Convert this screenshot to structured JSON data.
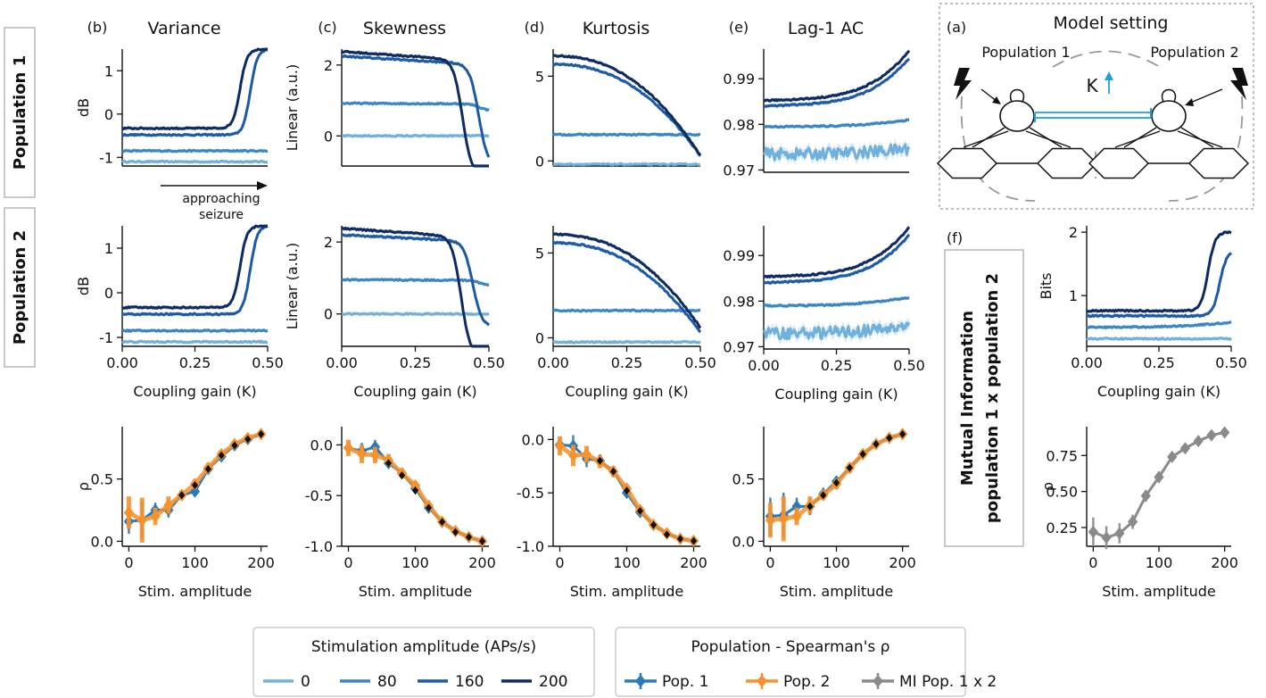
{
  "colors": {
    "stim_0": "#6fb1dc",
    "stim_80": "#3a85c4",
    "stim_160": "#1c5aa5",
    "stim_200": "#0d2b62",
    "pop1": "#2a7bb8",
    "pop2": "#f5922e",
    "mi": "#8a8a8a",
    "K_arrow": "#1aa0de"
  },
  "row_labels": [
    "Population 1",
    "Population 2"
  ],
  "mi_label": [
    "Mutual Information",
    "population 1 x population 2"
  ],
  "annotation": [
    "approaching",
    "seizure"
  ],
  "model": {
    "panel": "(a)",
    "title": "Model setting",
    "pop1": "Population 1",
    "pop2": "Population 2",
    "K": "K"
  },
  "chart_data": [
    {
      "id": "variance-pop1",
      "panel": "(b)",
      "title": "Variance",
      "type": "line",
      "ylabel": "dB",
      "xlabel": "",
      "xlim": [
        0,
        0.5
      ],
      "ylim": [
        -1.2,
        1.5
      ],
      "yticks": [
        -1,
        0,
        1
      ],
      "xticks": [],
      "series": [
        {
          "stim": 0,
          "shape": "flat",
          "level": -1.1
        },
        {
          "stim": 80,
          "shape": "flat",
          "level": -0.85
        },
        {
          "stim": 160,
          "shape": "rise",
          "level": -0.48,
          "top": 1.5,
          "k0": 0.44
        },
        {
          "stim": 200,
          "shape": "rise",
          "level": -0.33,
          "top": 1.5,
          "k0": 0.405
        }
      ]
    },
    {
      "id": "skewness-pop1",
      "panel": "(c)",
      "title": "Skewness",
      "type": "line",
      "ylabel": "Linear (a.u.)",
      "xlabel": "",
      "xlim": [
        0,
        0.5
      ],
      "ylim": [
        -0.85,
        2.45
      ],
      "yticks": [
        0,
        2
      ],
      "xticks": [],
      "series": [
        {
          "stim": 0,
          "shape": "flat",
          "level": 0.0
        },
        {
          "stim": 80,
          "shape": "fall",
          "level": 0.92,
          "end": 0.72,
          "k0": 0.5
        },
        {
          "stim": 160,
          "shape": "fall",
          "level": 2.25,
          "end": -0.6,
          "k0": 0.495
        },
        {
          "stim": 200,
          "shape": "fall",
          "level": 2.38,
          "end": -0.85,
          "k0": 0.44
        }
      ]
    },
    {
      "id": "kurtosis-pop1",
      "panel": "(d)",
      "title": "Kurtosis",
      "type": "line",
      "ylabel": "",
      "xlabel": "",
      "xlim": [
        0,
        0.5
      ],
      "ylim": [
        -0.3,
        6.6
      ],
      "yticks": [
        0,
        5
      ],
      "xticks": [],
      "series": [
        {
          "stim": 0,
          "shape": "flat",
          "level": -0.2
        },
        {
          "stim": 80,
          "shape": "flat",
          "level": 1.55
        },
        {
          "stim": 160,
          "shape": "decline",
          "level": 5.7,
          "end": 0.3
        },
        {
          "stim": 200,
          "shape": "decline",
          "level": 6.2,
          "end": 0.3
        }
      ]
    },
    {
      "id": "lag1ac-pop1",
      "panel": "(e)",
      "title": "Lag-1 AC",
      "type": "line",
      "ylabel": "",
      "xlabel": "",
      "xlim": [
        0,
        0.5
      ],
      "ylim": [
        0.9695,
        0.9965
      ],
      "yticks": [
        0.97,
        0.98,
        0.99
      ],
      "xticks": [],
      "series": [
        {
          "stim": 0,
          "shape": "flat",
          "level": 0.9735,
          "noise": 0.0013,
          "band": 0.0012,
          "rise": 0.0012
        },
        {
          "stim": 80,
          "shape": "flat",
          "level": 0.9795,
          "rise": 0.0015
        },
        {
          "stim": 160,
          "shape": "upturn",
          "level": 0.984,
          "top": 0.9945
        },
        {
          "stim": 200,
          "shape": "upturn",
          "level": 0.9852,
          "top": 0.9962
        }
      ]
    },
    {
      "id": "variance-pop2",
      "panel": "",
      "title": "",
      "type": "line",
      "ylabel": "dB",
      "xlabel": "Coupling gain (K)",
      "xlim": [
        0,
        0.5
      ],
      "ylim": [
        -1.2,
        1.5
      ],
      "yticks": [
        -1,
        0,
        1
      ],
      "xticks": [
        "0.00",
        "0.25",
        "0.50"
      ],
      "series": [
        {
          "stim": 0,
          "shape": "flat",
          "level": -1.1
        },
        {
          "stim": 80,
          "shape": "flat",
          "level": -0.85
        },
        {
          "stim": 160,
          "shape": "rise",
          "level": -0.48,
          "top": 1.5,
          "k0": 0.44
        },
        {
          "stim": 200,
          "shape": "rise",
          "level": -0.33,
          "top": 1.5,
          "k0": 0.405
        }
      ]
    },
    {
      "id": "skewness-pop2",
      "panel": "",
      "title": "",
      "type": "line",
      "ylabel": "Linear (a.u.)",
      "xlabel": "Coupling gain (K)",
      "xlim": [
        0,
        0.5
      ],
      "ylim": [
        -0.9,
        2.45
      ],
      "yticks": [
        0,
        2
      ],
      "xticks": [
        "0.00",
        "0.25",
        "0.50"
      ],
      "series": [
        {
          "stim": 0,
          "shape": "flat",
          "level": 0.0
        },
        {
          "stim": 80,
          "shape": "fall",
          "level": 0.95,
          "end": 0.8,
          "k0": 0.5
        },
        {
          "stim": 160,
          "shape": "fall",
          "level": 2.2,
          "end": -0.15,
          "k0": 0.475
        },
        {
          "stim": 200,
          "shape": "fall",
          "level": 2.38,
          "end": -0.9,
          "k0": 0.435
        }
      ]
    },
    {
      "id": "kurtosis-pop2",
      "panel": "",
      "title": "",
      "type": "line",
      "ylabel": "",
      "xlabel": "Coupling gain (K)",
      "xlim": [
        0,
        0.5
      ],
      "ylim": [
        -0.5,
        6.6
      ],
      "yticks": [
        0,
        5
      ],
      "xticks": [
        "0.00",
        "0.25",
        "0.50"
      ],
      "series": [
        {
          "stim": 0,
          "shape": "flat",
          "level": -0.25
        },
        {
          "stim": 80,
          "shape": "flat",
          "level": 1.6
        },
        {
          "stim": 160,
          "shape": "decline",
          "level": 5.6,
          "end": 0.3
        },
        {
          "stim": 200,
          "shape": "decline",
          "level": 6.1,
          "end": 0.6
        }
      ]
    },
    {
      "id": "lag1ac-pop2",
      "panel": "",
      "title": "",
      "type": "line",
      "ylabel": "",
      "xlabel": "Coupling gain (K)",
      "xlim": [
        0,
        0.5
      ],
      "ylim": [
        0.9695,
        0.9965
      ],
      "yticks": [
        0.97,
        0.98,
        0.99
      ],
      "xticks": [
        "0.00",
        "0.25",
        "0.50"
      ],
      "series": [
        {
          "stim": 0,
          "shape": "flat",
          "level": 0.973,
          "noise": 0.0013,
          "band": 0.0012,
          "rise": 0.0015
        },
        {
          "stim": 80,
          "shape": "flat",
          "level": 0.979,
          "rise": 0.0018
        },
        {
          "stim": 160,
          "shape": "upturn",
          "level": 0.984,
          "top": 0.9945
        },
        {
          "stim": 200,
          "shape": "upturn",
          "level": 0.9853,
          "top": 0.9962
        }
      ]
    },
    {
      "id": "mi-bits",
      "panel": "(f)",
      "title": "",
      "type": "line",
      "ylabel": "Bits",
      "xlabel": "Coupling gain (K)",
      "xlim": [
        0,
        0.5
      ],
      "ylim": [
        0.2,
        2.1
      ],
      "yticks": [
        1,
        2
      ],
      "xticks": [
        "0.00",
        "0.25",
        "0.50"
      ],
      "series": [
        {
          "stim": 0,
          "shape": "flat",
          "level": 0.32
        },
        {
          "stim": 80,
          "shape": "flat",
          "level": 0.5,
          "rise": 0.08
        },
        {
          "stim": 160,
          "shape": "rise",
          "level": 0.68,
          "top": 1.7,
          "k0": 0.46,
          "full": false
        },
        {
          "stim": 200,
          "shape": "rise",
          "level": 0.76,
          "top": 2.0,
          "k0": 0.42,
          "full": false
        }
      ]
    },
    {
      "id": "rho-variance",
      "panel": "",
      "title": "",
      "type": "scatter",
      "ylabel": "ρ",
      "xlabel": "Stim. amplitude",
      "xlim": [
        -10,
        210
      ],
      "ylim": [
        -0.04,
        0.92
      ],
      "yticks": [
        0.0,
        0.5
      ],
      "xticks": [
        "0",
        "100",
        "200"
      ],
      "x": [
        0,
        20,
        40,
        60,
        80,
        100,
        120,
        140,
        160,
        180,
        200
      ],
      "series": [
        {
          "name": "Pop. 1",
          "values": [
            0.16,
            0.17,
            0.25,
            0.25,
            0.37,
            0.4,
            0.58,
            0.68,
            0.77,
            0.82,
            0.86
          ],
          "err": [
            0.1,
            0.15,
            0.06,
            0.06,
            0.04,
            0.04,
            0.04,
            0.03,
            0.03,
            0.02,
            0.02
          ]
        },
        {
          "name": "Pop. 2",
          "values": [
            0.23,
            0.17,
            0.2,
            0.29,
            0.37,
            0.46,
            0.59,
            0.7,
            0.78,
            0.83,
            0.86
          ],
          "err": [
            0.13,
            0.18,
            0.07,
            0.07,
            0.04,
            0.04,
            0.04,
            0.03,
            0.03,
            0.02,
            0.02
          ]
        },
        {
          "name": "MI",
          "values": [
            null,
            null,
            null,
            null,
            0.37,
            0.45,
            0.58,
            0.69,
            0.77,
            0.82,
            0.86
          ],
          "err": []
        }
      ]
    },
    {
      "id": "rho-skewness",
      "panel": "",
      "title": "",
      "type": "scatter",
      "ylabel": "",
      "xlabel": "Stim. amplitude",
      "xlim": [
        -10,
        210
      ],
      "ylim": [
        -1.0,
        0.18
      ],
      "yticks": [
        -1.0,
        -0.5,
        0.0
      ],
      "xticks": [
        "0",
        "100",
        "200"
      ],
      "x": [
        0,
        20,
        40,
        60,
        80,
        100,
        120,
        140,
        160,
        180,
        200
      ],
      "series": [
        {
          "name": "Pop. 1",
          "values": [
            -0.03,
            -0.06,
            -0.02,
            -0.18,
            -0.28,
            -0.43,
            -0.62,
            -0.76,
            -0.85,
            -0.91,
            -0.95
          ],
          "err": [
            0.05,
            0.08,
            0.07,
            0.05,
            0.04,
            0.04,
            0.03,
            0.03,
            0.02,
            0.02,
            0.02
          ]
        },
        {
          "name": "Pop. 2",
          "values": [
            -0.03,
            -0.09,
            -0.1,
            -0.15,
            -0.28,
            -0.4,
            -0.6,
            -0.76,
            -0.85,
            -0.91,
            -0.95
          ],
          "err": [
            0.08,
            0.09,
            0.08,
            0.06,
            0.05,
            0.04,
            0.03,
            0.03,
            0.02,
            0.02,
            0.02
          ]
        },
        {
          "name": "MI",
          "values": [
            null,
            null,
            null,
            -0.18,
            -0.3,
            -0.45,
            -0.62,
            -0.76,
            -0.86,
            -0.91,
            -0.95
          ],
          "err": []
        }
      ]
    },
    {
      "id": "rho-kurtosis",
      "panel": "",
      "title": "",
      "type": "scatter",
      "ylabel": "",
      "xlabel": "Stim. amplitude",
      "xlim": [
        -10,
        210
      ],
      "ylim": [
        -1.0,
        0.12
      ],
      "yticks": [
        -1.0,
        -0.5,
        0.0
      ],
      "xticks": [
        "0",
        "100",
        "200"
      ],
      "x": [
        0,
        20,
        40,
        60,
        80,
        100,
        120,
        140,
        160,
        180,
        200
      ],
      "series": [
        {
          "name": "Pop. 1",
          "values": [
            -0.05,
            -0.06,
            -0.18,
            -0.2,
            -0.3,
            -0.5,
            -0.68,
            -0.8,
            -0.88,
            -0.93,
            -0.95
          ],
          "err": [
            0.07,
            0.1,
            0.08,
            0.06,
            0.05,
            0.04,
            0.03,
            0.03,
            0.02,
            0.02,
            0.02
          ]
        },
        {
          "name": "Pop. 2",
          "values": [
            -0.06,
            -0.15,
            -0.14,
            -0.21,
            -0.3,
            -0.46,
            -0.66,
            -0.8,
            -0.88,
            -0.93,
            -0.95
          ],
          "err": [
            0.09,
            0.1,
            0.08,
            0.06,
            0.05,
            0.04,
            0.03,
            0.03,
            0.02,
            0.02,
            0.02
          ]
        },
        {
          "name": "MI",
          "values": [
            null,
            null,
            null,
            -0.2,
            -0.3,
            -0.48,
            -0.67,
            -0.8,
            -0.89,
            -0.93,
            -0.95
          ],
          "err": []
        }
      ]
    },
    {
      "id": "rho-lag1ac",
      "panel": "",
      "title": "",
      "type": "scatter",
      "ylabel": "",
      "xlabel": "Stim. amplitude",
      "xlim": [
        -10,
        210
      ],
      "ylim": [
        -0.04,
        0.92
      ],
      "yticks": [
        0.0,
        0.5
      ],
      "xticks": [
        "0",
        "100",
        "200"
      ],
      "x": [
        0,
        20,
        40,
        60,
        80,
        100,
        120,
        140,
        160,
        180,
        200
      ],
      "series": [
        {
          "name": "Pop. 1",
          "values": [
            0.2,
            0.21,
            0.28,
            0.28,
            0.38,
            0.48,
            0.59,
            0.7,
            0.78,
            0.83,
            0.86
          ],
          "err": [
            0.15,
            0.18,
            0.07,
            0.07,
            0.05,
            0.04,
            0.04,
            0.03,
            0.03,
            0.02,
            0.02
          ]
        },
        {
          "name": "Pop. 2",
          "values": [
            0.17,
            0.18,
            0.2,
            0.29,
            0.37,
            0.46,
            0.59,
            0.7,
            0.78,
            0.83,
            0.86
          ],
          "err": [
            0.14,
            0.18,
            0.07,
            0.07,
            0.04,
            0.04,
            0.04,
            0.03,
            0.03,
            0.02,
            0.02
          ]
        },
        {
          "name": "MI",
          "values": [
            null,
            null,
            null,
            0.28,
            0.37,
            0.47,
            0.59,
            0.7,
            0.78,
            0.83,
            0.86
          ],
          "err": []
        }
      ]
    },
    {
      "id": "rho-mi",
      "panel": "",
      "title": "",
      "type": "scatter",
      "ylabel": "ρ",
      "xlabel": "Stim. amplitude",
      "xlim": [
        -10,
        210
      ],
      "ylim": [
        0.12,
        0.95
      ],
      "yticks": [
        0.25,
        0.5,
        0.75
      ],
      "ytickfmt": "0.00",
      "xticks": [
        "0",
        "100",
        "200"
      ],
      "x": [
        0,
        20,
        40,
        60,
        80,
        100,
        120,
        140,
        160,
        180,
        200
      ],
      "series": [
        {
          "name": "MI",
          "values": [
            0.22,
            0.18,
            0.21,
            0.29,
            0.47,
            0.6,
            0.74,
            0.8,
            0.85,
            0.89,
            0.91
          ],
          "err": [
            0.1,
            0.08,
            0.07,
            0.05,
            0.04,
            0.04,
            0.03,
            0.03,
            0.02,
            0.02,
            0.02
          ]
        }
      ]
    }
  ],
  "legend_stim": {
    "title": "Stimulation amplitude (APs/s)",
    "entries": [
      "0",
      "80",
      "160",
      "200"
    ]
  },
  "legend_pop": {
    "title": "Population - Spearman's ρ",
    "entries": [
      "Pop. 1",
      "Pop. 2",
      "MI Pop. 1 x 2"
    ]
  }
}
